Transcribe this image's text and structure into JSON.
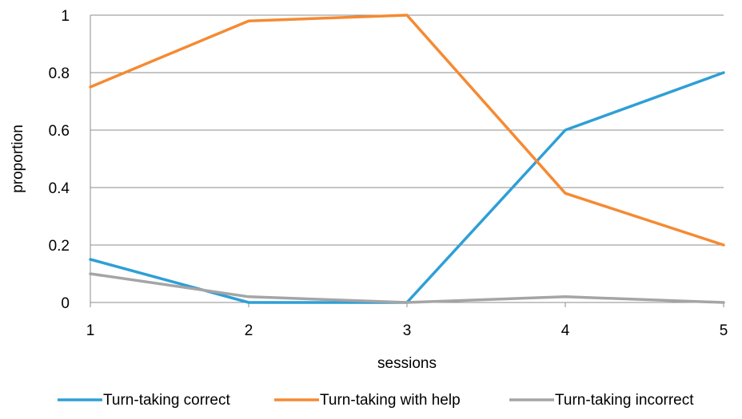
{
  "chart_data": {
    "type": "line",
    "x": [
      1,
      2,
      3,
      4,
      5
    ],
    "xlabel": "sessions",
    "ylabel": "proportion",
    "ylim": [
      0,
      1
    ],
    "yticks": [
      "0",
      "0.2",
      "0.4",
      "0.6",
      "0.8",
      "1"
    ],
    "xticks": [
      "1",
      "2",
      "3",
      "4",
      "5"
    ],
    "grid": "horizontal",
    "legend_position": "bottom",
    "series": [
      {
        "name": "Turn-taking correct",
        "color": "#2e9fd6",
        "values": [
          0.15,
          0.0,
          0.0,
          0.6,
          0.8
        ]
      },
      {
        "name": "Turn-taking with help",
        "color": "#f58a32",
        "values": [
          0.75,
          0.98,
          1.0,
          0.38,
          0.2
        ]
      },
      {
        "name": "Turn-taking incorrect",
        "color": "#a5a5a5",
        "values": [
          0.1,
          0.02,
          0.0,
          0.02,
          0.0
        ]
      }
    ]
  }
}
